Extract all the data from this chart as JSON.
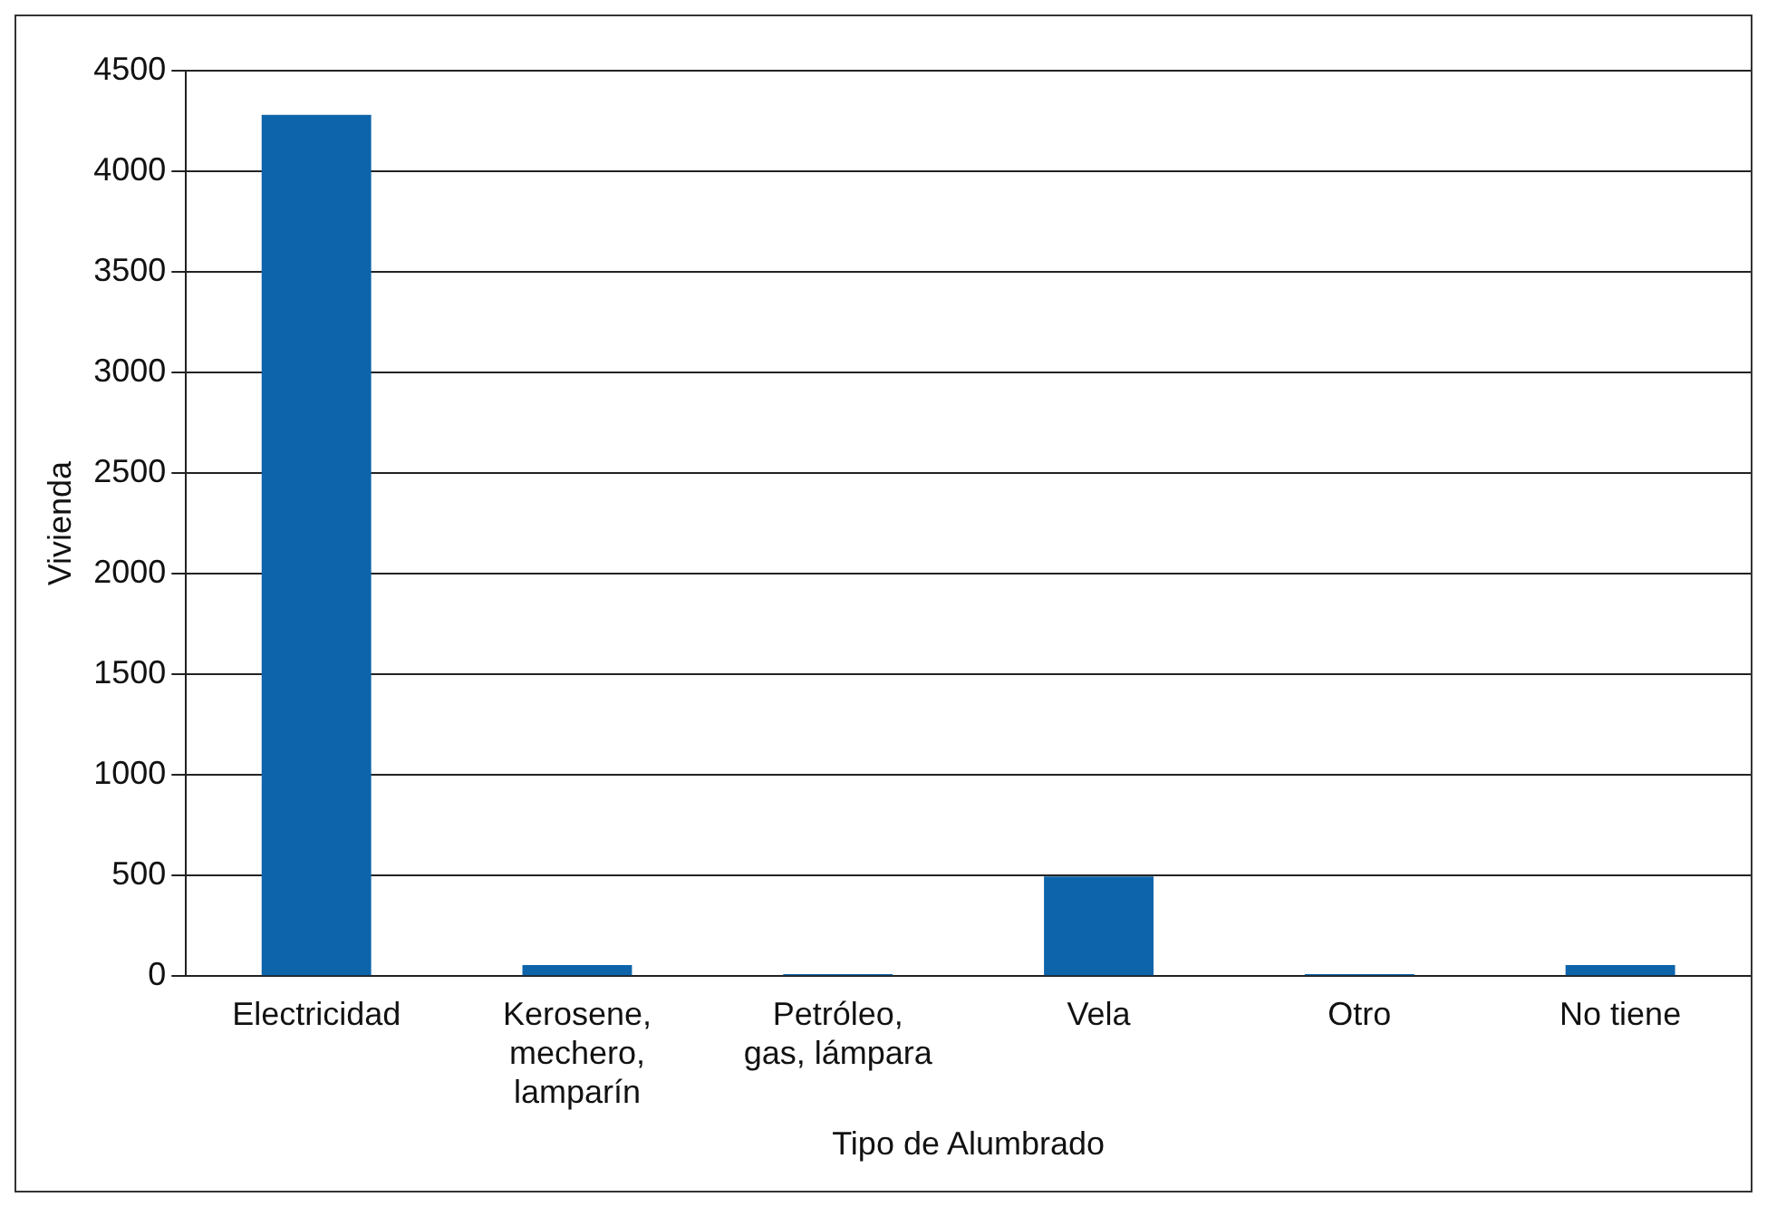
{
  "chart_data": {
    "type": "bar",
    "xlabel": "Tipo de Alumbrado",
    "ylabel": "Vivienda",
    "categories": [
      "Electricidad",
      "Kerosene, mechero, lamparín",
      "Petróleo, gas, lámpara",
      "Vela",
      "Otro",
      "No tiene"
    ],
    "values": [
      4280,
      55,
      10,
      495,
      10,
      55
    ],
    "color": "#0d64aa",
    "ylim": [
      0,
      4500
    ],
    "yticks": [
      0,
      500,
      1000,
      1500,
      2000,
      2500,
      3000,
      3500,
      4000,
      4500
    ],
    "grid": "y",
    "legend": false
  }
}
